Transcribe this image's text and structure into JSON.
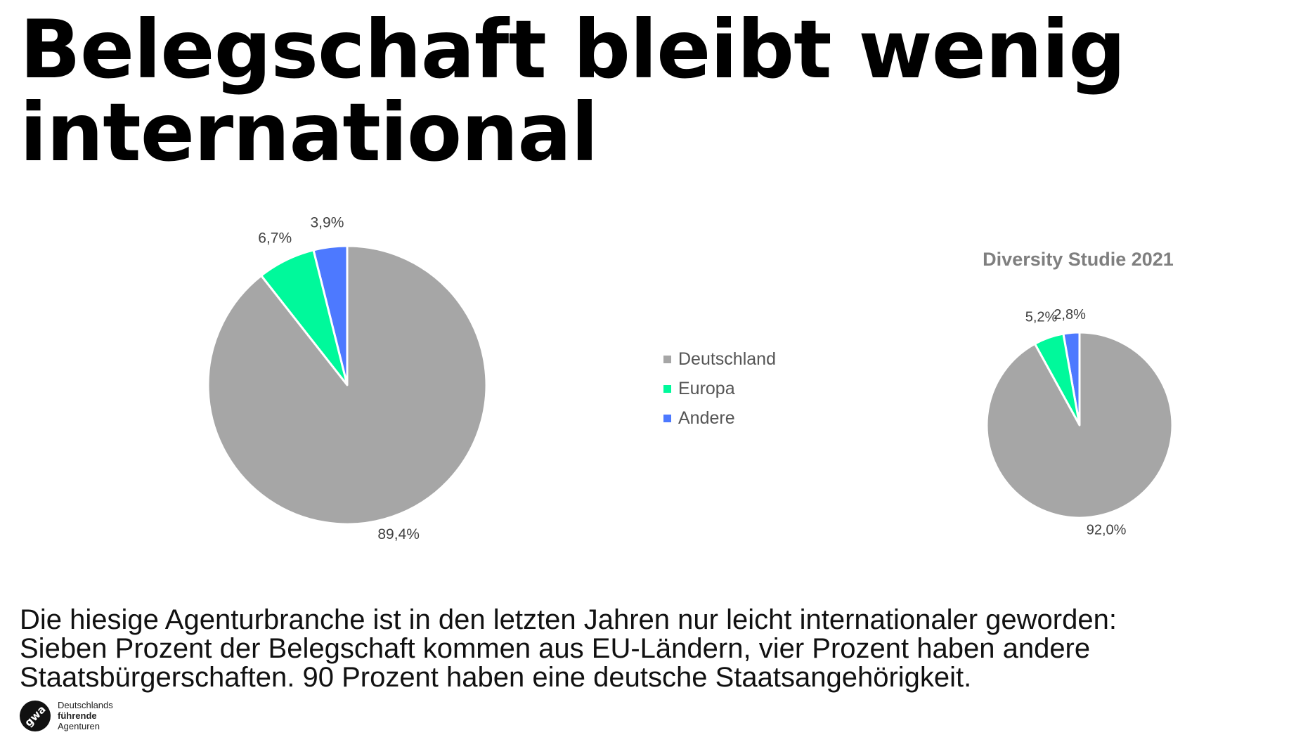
{
  "title": {
    "line1": "Belegschaft bleibt wenig",
    "line2": "international"
  },
  "colors": {
    "Deutschland": "#a6a6a6",
    "Europa": "#00f99b",
    "Andere": "#4d79ff",
    "label_text": "#404040",
    "subtitle_text": "#7f7f7f"
  },
  "legend": {
    "items": [
      {
        "label": "Deutschland",
        "color": "#a6a6a6"
      },
      {
        "label": "Europa",
        "color": "#00f99b"
      },
      {
        "label": "Andere",
        "color": "#4d79ff"
      }
    ]
  },
  "chart_data": [
    {
      "type": "pie",
      "title": "",
      "categories": [
        "Deutschland",
        "Europa",
        "Andere"
      ],
      "values": [
        89.4,
        6.7,
        3.9
      ],
      "labels": [
        "89,4%",
        "6,7%",
        "3,9%"
      ],
      "legend": "shared, center"
    },
    {
      "type": "pie",
      "title": "Diversity Studie 2021",
      "categories": [
        "Deutschland",
        "Europa",
        "Andere"
      ],
      "values": [
        92.0,
        5.2,
        2.8
      ],
      "labels": [
        "92,0%",
        "5,2%",
        "2,8%"
      ],
      "legend": "shared, center"
    }
  ],
  "description": {
    "line1": "Die hiesige Agenturbranche ist in den letzten Jahren nur leicht internationaler geworden:",
    "line2": "Sieben Prozent der Belegschaft kommen aus EU-Ländern, vier Prozent haben andere",
    "line3": "Staatsbürgerschaften. 90 Prozent haben eine deutsche Staatsangehörigkeit."
  },
  "brand": {
    "logo_text": "gwa",
    "line1": "Deutschlands",
    "line2": "führende",
    "line3": "Agenturen"
  }
}
